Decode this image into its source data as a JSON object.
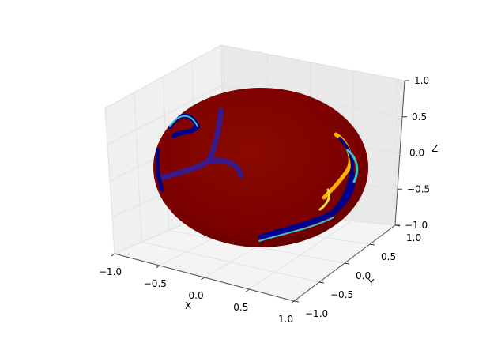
{
  "chart_data": {
    "type": "surface",
    "projection": "3d",
    "surface": "unit sphere colored by scalar field (jet colormap), mostly dark red with blue/cyan/yellow streaks",
    "colormap": "jet",
    "xlabel": "X",
    "ylabel": "Y",
    "zlabel": "Z",
    "xlim": [
      -1.0,
      1.0
    ],
    "ylim": [
      -1.0,
      1.0
    ],
    "zlim": [
      -1.0,
      1.0
    ],
    "xticks": [
      "−1.0",
      "−0.5",
      "0.0",
      "0.5",
      "1.0"
    ],
    "yticks": [
      "−1.0",
      "−0.5",
      "0.0",
      "0.5",
      "1.0"
    ],
    "zticks": [
      "−1.0",
      "−0.5",
      "0.0",
      "0.5",
      "1.0"
    ],
    "grid": true
  },
  "colors": {
    "surface_base": "#7f0000",
    "streak_blue": "#00007f",
    "streak_cyan": "#3fbfbf",
    "streak_yellow": "#ffd700",
    "pane": "#f2f2f2"
  }
}
